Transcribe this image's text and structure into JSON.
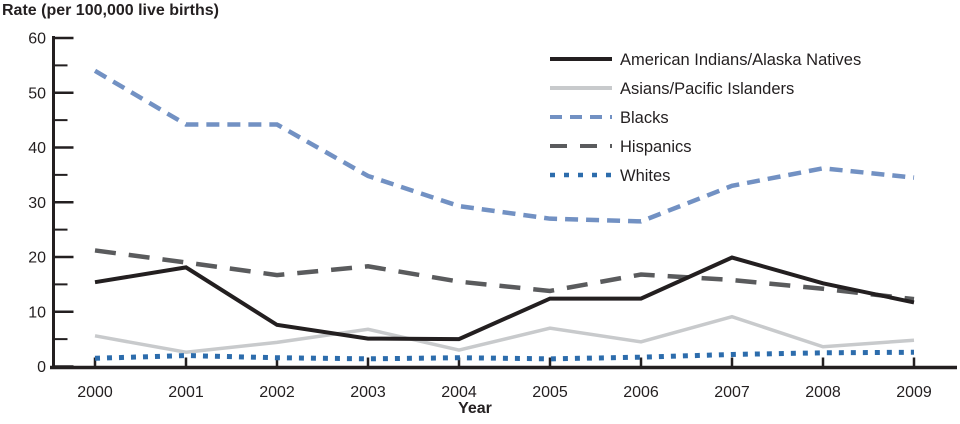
{
  "chart_data": {
    "type": "line",
    "title": "Rate (per 100,000 live births)",
    "xlabel": "Year",
    "ylabel": "Rate (per 100,000 live births)",
    "x": [
      2000,
      2001,
      2002,
      2003,
      2004,
      2005,
      2006,
      2007,
      2008,
      2009
    ],
    "ylim": [
      0,
      60
    ],
    "y_major_ticks": [
      0,
      10,
      20,
      30,
      40,
      50,
      60
    ],
    "y_minor_ticks": [
      5,
      15,
      25,
      35,
      45,
      55
    ],
    "grid": false,
    "legend_position": "inside-top-right",
    "axis_color": "#231f20",
    "series": [
      {
        "name": "American Indians/Alaska Natives",
        "color": "#231f20",
        "dash": "",
        "legend_dash": "",
        "width": 4,
        "values": [
          15.4,
          18.1,
          7.6,
          5.1,
          5.0,
          12.4,
          12.4,
          19.9,
          15.2,
          11.7
        ]
      },
      {
        "name": "Asians/Pacific Islanders",
        "color": "#c8cacc",
        "dash": "",
        "legend_dash": "",
        "width": 3.5,
        "values": [
          5.6,
          2.6,
          4.4,
          6.8,
          3.0,
          7.0,
          4.5,
          9.1,
          3.6,
          4.8
        ]
      },
      {
        "name": "Blacks",
        "color": "#7291c3",
        "dash": "13 8",
        "legend_dash": "12 8",
        "width": 4.5,
        "values": [
          54.0,
          44.2,
          44.2,
          34.8,
          29.3,
          27.0,
          26.5,
          33.0,
          36.2,
          34.5
        ]
      },
      {
        "name": "Hispanics",
        "color": "#5a5b5d",
        "dash": "21 13",
        "legend_dash": "17 13",
        "width": 4.5,
        "values": [
          21.2,
          19.0,
          16.7,
          18.3,
          15.5,
          13.8,
          16.8,
          15.8,
          14.2,
          12.3
        ]
      },
      {
        "name": "Whites",
        "color": "#2c6cac",
        "dash": "5 7",
        "legend_dash": "5 9",
        "width": 5,
        "values": [
          1.5,
          2.0,
          1.6,
          1.4,
          1.6,
          1.4,
          1.7,
          2.2,
          2.5,
          2.6
        ]
      }
    ]
  }
}
